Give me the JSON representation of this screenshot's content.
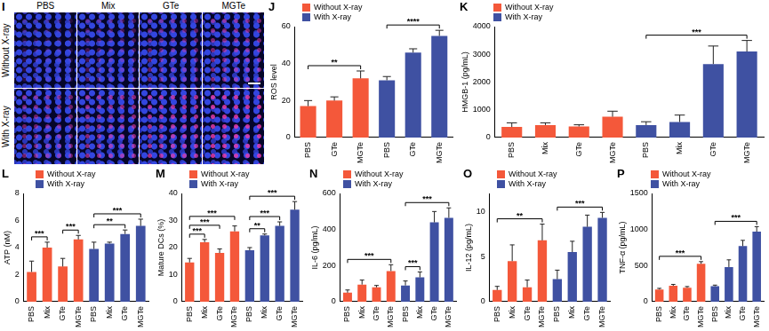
{
  "image_panel": {
    "panel": "I",
    "columns": [
      "PBS",
      "Mix",
      "GTe",
      "MGTe"
    ],
    "rows": [
      "Without X-ray",
      "With X-ray"
    ]
  },
  "chart_data": [
    {
      "panel": "J",
      "type": "bar",
      "y_label": "ROS level",
      "categories": [
        "PBS",
        "GTe",
        "MGTe",
        "PBS",
        "GTe",
        "MGTe"
      ],
      "series": [
        {
          "name": "Without X-ray",
          "color": "#f4583a",
          "values": [
            17,
            20,
            32,
            null,
            null,
            null
          ],
          "errors": [
            3,
            2,
            4,
            null,
            null,
            null
          ]
        },
        {
          "name": "With X-ray",
          "color": "#3f51a2",
          "values": [
            null,
            null,
            null,
            31,
            46,
            55
          ],
          "errors": [
            null,
            null,
            null,
            2,
            2,
            3
          ]
        }
      ],
      "ylim": [
        0,
        60
      ],
      "yticks": [
        0,
        20,
        40,
        60
      ],
      "grid": false,
      "legend": "upper left",
      "annotations": [
        {
          "text": "**",
          "from": 0,
          "to": 2
        },
        {
          "text": "****",
          "from": 3,
          "to": 5
        }
      ]
    },
    {
      "panel": "K",
      "type": "bar",
      "y_label": "HMGB-1 (pg/mL)",
      "categories": [
        "PBS",
        "Mix",
        "GTe",
        "MGTe",
        "PBS",
        "Mix",
        "GTe",
        "MGTe"
      ],
      "series": [
        {
          "name": "Without X-ray",
          "color": "#f4583a",
          "values": [
            380,
            450,
            400,
            750,
            null,
            null,
            null,
            null
          ],
          "errors": [
            150,
            80,
            60,
            200,
            null,
            null,
            null,
            null
          ]
        },
        {
          "name": "With X-ray",
          "color": "#3f51a2",
          "values": [
            null,
            null,
            null,
            null,
            450,
            560,
            2650,
            3100
          ],
          "errors": [
            null,
            null,
            null,
            null,
            120,
            250,
            650,
            400
          ]
        }
      ],
      "ylim": [
        0,
        4000
      ],
      "yticks": [
        0,
        1000,
        2000,
        3000,
        4000
      ],
      "grid": false,
      "legend": "upper left",
      "annotations": [
        {
          "text": "***",
          "from": 4,
          "to": 7
        }
      ]
    },
    {
      "panel": "L",
      "type": "bar",
      "y_label": "ATP (nM)",
      "categories": [
        "PBS",
        "Mix",
        "GTe",
        "MGTe",
        "PBS",
        "Mix",
        "GTe",
        "MGTe"
      ],
      "series": [
        {
          "name": "Without X-ray",
          "color": "#f4583a",
          "values": [
            2.2,
            4.0,
            2.6,
            4.6,
            null,
            null,
            null,
            null
          ],
          "errors": [
            0.8,
            0.4,
            0.6,
            0.3,
            null,
            null,
            null,
            null
          ]
        },
        {
          "name": "With X-ray",
          "color": "#3f51a2",
          "values": [
            null,
            null,
            null,
            null,
            3.9,
            4.3,
            5.0,
            5.6
          ],
          "errors": [
            null,
            null,
            null,
            null,
            0.5,
            0.1,
            0.3,
            0.5
          ]
        }
      ],
      "ylim": [
        0,
        8
      ],
      "yticks": [
        0,
        2,
        4,
        6,
        8
      ],
      "grid": false,
      "legend": "upper left",
      "annotations": [
        {
          "text": "***",
          "from": 0,
          "to": 1
        },
        {
          "text": "***",
          "from": 2,
          "to": 3
        },
        {
          "text": "**",
          "from": 4,
          "to": 6
        },
        {
          "text": "***",
          "from": 4,
          "to": 7
        }
      ]
    },
    {
      "panel": "M",
      "type": "bar",
      "y_label": "Mature DCs (%)",
      "categories": [
        "PBS",
        "Mix",
        "GTe",
        "MGTe",
        "PBS",
        "Mix",
        "GTe",
        "MGTe"
      ],
      "series": [
        {
          "name": "Without X-ray",
          "color": "#f4583a",
          "values": [
            14.5,
            22,
            18,
            26,
            null,
            null,
            null,
            null
          ],
          "errors": [
            1.5,
            1,
            1.5,
            2,
            null,
            null,
            null,
            null
          ]
        },
        {
          "name": "With X-ray",
          "color": "#3f51a2",
          "values": [
            null,
            null,
            null,
            null,
            19,
            24.5,
            28,
            34
          ],
          "errors": [
            null,
            null,
            null,
            null,
            1,
            0.5,
            1.5,
            3
          ]
        }
      ],
      "ylim": [
        0,
        40
      ],
      "yticks": [
        0,
        10,
        20,
        30,
        40
      ],
      "grid": false,
      "legend": "upper left",
      "annotations": [
        {
          "text": "***",
          "from": 0,
          "to": 1
        },
        {
          "text": "***",
          "from": 0,
          "to": 2
        },
        {
          "text": "***",
          "from": 0,
          "to": 3
        },
        {
          "text": "**",
          "from": 4,
          "to": 5
        },
        {
          "text": "***",
          "from": 4,
          "to": 6
        },
        {
          "text": "***",
          "from": 4,
          "to": 7
        }
      ]
    },
    {
      "panel": "N",
      "type": "bar",
      "y_label": "IL-6 (pg/mL)",
      "categories": [
        "PBS",
        "Mix",
        "GTe",
        "MGTe",
        "PBS",
        "Mix",
        "GTe",
        "MGTe"
      ],
      "series": [
        {
          "name": "Without X-ray",
          "color": "#f4583a",
          "values": [
            50,
            95,
            80,
            170,
            null,
            null,
            null,
            null
          ],
          "errors": [
            15,
            25,
            10,
            35,
            null,
            null,
            null,
            null
          ]
        },
        {
          "name": "With X-ray",
          "color": "#3f51a2",
          "values": [
            null,
            null,
            null,
            null,
            90,
            135,
            440,
            465
          ],
          "errors": [
            null,
            null,
            null,
            null,
            25,
            30,
            60,
            55
          ]
        }
      ],
      "ylim": [
        0,
        600
      ],
      "yticks": [
        0,
        200,
        400,
        600
      ],
      "grid": false,
      "legend": "upper left",
      "annotations": [
        {
          "text": "***",
          "from": 0,
          "to": 3
        },
        {
          "text": "***",
          "from": 4,
          "to": 5
        },
        {
          "text": "***",
          "from": 4,
          "to": 7
        }
      ]
    },
    {
      "panel": "O",
      "type": "bar",
      "y_label": "IL-12 (pg/mL)",
      "categories": [
        "PBS",
        "Mix",
        "GTe",
        "MGTe",
        "PBS",
        "Mix",
        "GTe",
        "MGTe"
      ],
      "series": [
        {
          "name": "Without X-ray",
          "color": "#f4583a",
          "values": [
            1.3,
            4.5,
            1.6,
            6.8,
            null,
            null,
            null,
            null
          ],
          "errors": [
            0.4,
            1.8,
            0.8,
            1.8,
            null,
            null,
            null,
            null
          ]
        },
        {
          "name": "With X-ray",
          "color": "#3f51a2",
          "values": [
            null,
            null,
            null,
            null,
            2.5,
            5.5,
            8.3,
            9.3
          ],
          "errors": [
            null,
            null,
            null,
            null,
            1,
            1.2,
            1.3,
            0.6
          ]
        }
      ],
      "ylim": [
        0,
        12
      ],
      "yticks": [
        0,
        5,
        10
      ],
      "grid": false,
      "legend": "upper left",
      "annotations": [
        {
          "text": "**",
          "from": 0,
          "to": 3
        },
        {
          "text": "***",
          "from": 4,
          "to": 7
        }
      ]
    },
    {
      "panel": "P",
      "type": "bar",
      "y_label": "TNF-α (pg/mL)",
      "categories": [
        "PBS",
        "Mix",
        "GTe",
        "MGTe",
        "PBS",
        "Mix",
        "GTe",
        "MGTe"
      ],
      "series": [
        {
          "name": "Without X-ray",
          "color": "#f4583a",
          "values": [
            170,
            220,
            195,
            525,
            null,
            null,
            null,
            null
          ],
          "errors": [
            15,
            20,
            15,
            30,
            null,
            null,
            null,
            null
          ]
        },
        {
          "name": "With X-ray",
          "color": "#3f51a2",
          "values": [
            null,
            null,
            null,
            null,
            215,
            480,
            770,
            970
          ],
          "errors": [
            null,
            null,
            null,
            null,
            15,
            100,
            80,
            70
          ]
        }
      ],
      "ylim": [
        0,
        1500
      ],
      "yticks": [
        0,
        500,
        1000,
        1500
      ],
      "grid": false,
      "legend": "upper left",
      "annotations": [
        {
          "text": "***",
          "from": 0,
          "to": 3
        },
        {
          "text": "***",
          "from": 4,
          "to": 7
        }
      ]
    }
  ]
}
